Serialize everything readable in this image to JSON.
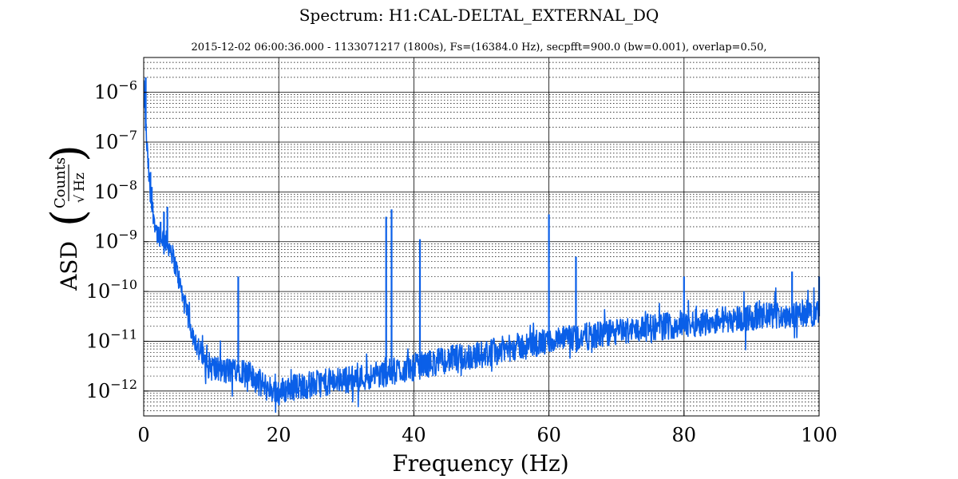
{
  "chart_data": {
    "type": "line",
    "title": "Spectrum: H1:CAL-DELTAL_EXTERNAL_DQ",
    "subtitle": "2015-12-02 06:00:36.000 - 1133071217 (1800s), Fs=(16384.0 Hz), secpfft=900.0 (bw=0.001), overlap=0.50,",
    "xlabel": "Frequency (Hz)",
    "ylabel": {
      "prefix": "ASD",
      "numerator": "Counts",
      "denominator": "Hz"
    },
    "xlim": [
      0,
      100
    ],
    "ylim_log10": [
      -12.5,
      -5.3
    ],
    "yscale": "log",
    "grid": true,
    "x_ticks": [
      0,
      20,
      40,
      60,
      80,
      100
    ],
    "y_tick_exponents": [
      -12,
      -11,
      -10,
      -9,
      -8,
      -7,
      -6
    ],
    "y_tick_base": "10",
    "line_color": "#0a5fe8",
    "series": [
      {
        "floor_points": [
          [
            0.0,
            -5.9
          ],
          [
            0.4,
            -7.0
          ],
          [
            1.0,
            -8.2
          ],
          [
            2.0,
            -8.9
          ],
          [
            3.0,
            -9.0
          ],
          [
            4.0,
            -9.2
          ],
          [
            5.0,
            -9.7
          ],
          [
            6.0,
            -10.3
          ],
          [
            7.0,
            -10.8
          ],
          [
            8.0,
            -11.2
          ],
          [
            9.0,
            -11.5
          ],
          [
            10.0,
            -11.6
          ],
          [
            12.0,
            -11.7
          ],
          [
            14.0,
            -11.6
          ],
          [
            16.0,
            -11.8
          ],
          [
            18.0,
            -12.0
          ],
          [
            20.0,
            -12.1
          ],
          [
            22.0,
            -12.0
          ],
          [
            25.0,
            -11.95
          ],
          [
            30.0,
            -11.85
          ],
          [
            35.0,
            -11.75
          ],
          [
            40.0,
            -11.6
          ],
          [
            45.0,
            -11.45
          ],
          [
            50.0,
            -11.35
          ],
          [
            55.0,
            -11.2
          ],
          [
            60.0,
            -11.1
          ],
          [
            65.0,
            -11.0
          ],
          [
            70.0,
            -10.9
          ],
          [
            75.0,
            -10.8
          ],
          [
            80.0,
            -10.75
          ],
          [
            85.0,
            -10.65
          ],
          [
            90.0,
            -10.6
          ],
          [
            95.0,
            -10.55
          ],
          [
            100.0,
            -10.5
          ]
        ],
        "peaks": [
          [
            0.3,
            -5.7
          ],
          [
            1.0,
            -7.6
          ],
          [
            1.2,
            -7.9
          ],
          [
            2.5,
            -8.6
          ],
          [
            3.0,
            -8.4
          ],
          [
            3.5,
            -8.3
          ],
          [
            14.0,
            -9.7
          ],
          [
            35.9,
            -8.5
          ],
          [
            36.7,
            -8.35
          ],
          [
            40.9,
            -8.95
          ],
          [
            60.0,
            -8.45
          ],
          [
            64.0,
            -9.3
          ],
          [
            80.0,
            -9.7
          ],
          [
            96.0,
            -9.6
          ],
          [
            100.0,
            -9.7
          ]
        ]
      }
    ]
  }
}
